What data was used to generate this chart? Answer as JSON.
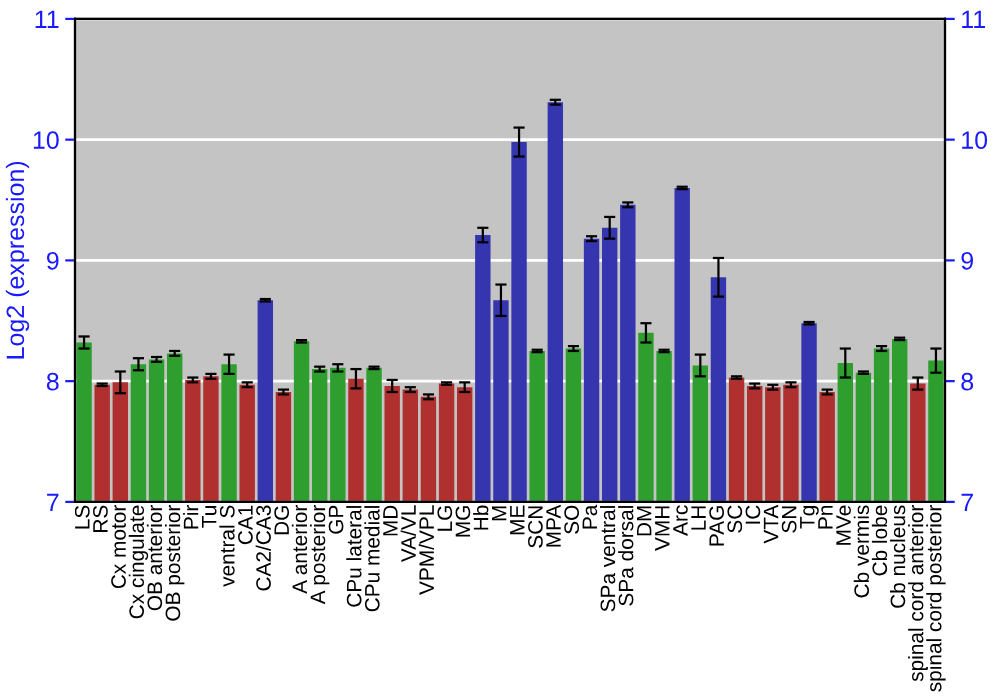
{
  "chart_data": {
    "type": "bar",
    "ylabel": "Log2 (expression)",
    "categories": [
      "LS",
      "RS",
      "Cx motor",
      "Cx cingulate",
      "OB anterior",
      "OB posterior",
      "Pir",
      "Tu",
      "ventral S",
      "CA1",
      "CA2/CA3",
      "DG",
      "A anterior",
      "A posterior",
      "GP",
      "CPu lateral",
      "CPu medial",
      "MD",
      "VA/VL",
      "VPM/VPL",
      "LG",
      "MG",
      "Hb",
      "M",
      "ME",
      "SCN",
      "MPA",
      "SO",
      "Pa",
      "SPa ventral",
      "SPa dorsal",
      "DM",
      "VMH",
      "Arc",
      "LH",
      "PAG",
      "SC",
      "IC",
      "VTA",
      "SN",
      "Tg",
      "Pn",
      "MVe",
      "Cb vermis",
      "Cb lobe",
      "Cb nucleus",
      "spinal cord anterior",
      "spinal cord posterior"
    ],
    "values": [
      8.32,
      7.97,
      7.99,
      8.14,
      8.18,
      8.23,
      8.01,
      8.04,
      8.14,
      7.97,
      8.67,
      7.91,
      8.33,
      8.1,
      8.11,
      8.02,
      8.11,
      7.96,
      7.93,
      7.87,
      7.98,
      7.95,
      9.21,
      8.67,
      9.98,
      8.25,
      10.31,
      8.27,
      9.18,
      9.27,
      9.46,
      8.4,
      8.25,
      9.6,
      8.13,
      8.86,
      8.03,
      7.96,
      7.95,
      7.97,
      8.48,
      7.91,
      8.15,
      8.07,
      8.27,
      8.35,
      7.98,
      8.17
    ],
    "errors": [
      0.05,
      0.01,
      0.09,
      0.05,
      0.02,
      0.02,
      0.02,
      0.02,
      0.08,
      0.02,
      0.01,
      0.02,
      0.01,
      0.02,
      0.03,
      0.08,
      0.01,
      0.05,
      0.02,
      0.02,
      0.01,
      0.04,
      0.06,
      0.13,
      0.12,
      0.01,
      0.02,
      0.02,
      0.02,
      0.09,
      0.02,
      0.08,
      0.01,
      0.01,
      0.09,
      0.16,
      0.01,
      0.02,
      0.02,
      0.02,
      0.01,
      0.02,
      0.12,
      0.01,
      0.02,
      0.01,
      0.05,
      0.1
    ],
    "colors": [
      "#2e9e2e",
      "#b03030",
      "#b03030",
      "#2e9e2e",
      "#2e9e2e",
      "#2e9e2e",
      "#b03030",
      "#b03030",
      "#2e9e2e",
      "#b03030",
      "#3535b0",
      "#b03030",
      "#2e9e2e",
      "#2e9e2e",
      "#2e9e2e",
      "#b03030",
      "#2e9e2e",
      "#b03030",
      "#b03030",
      "#b03030",
      "#b03030",
      "#b03030",
      "#3535b0",
      "#3535b0",
      "#3535b0",
      "#2e9e2e",
      "#3535b0",
      "#2e9e2e",
      "#3535b0",
      "#3535b0",
      "#3535b0",
      "#2e9e2e",
      "#2e9e2e",
      "#3535b0",
      "#2e9e2e",
      "#3535b0",
      "#b03030",
      "#b03030",
      "#b03030",
      "#b03030",
      "#3535b0",
      "#b03030",
      "#2e9e2e",
      "#2e9e2e",
      "#2e9e2e",
      "#2e9e2e",
      "#b03030",
      "#2e9e2e"
    ],
    "ylim": [
      7,
      11
    ],
    "yticks": [
      7,
      8,
      9,
      10,
      11
    ],
    "y2lim": [
      7,
      11
    ],
    "y2ticks": [
      7,
      8,
      9,
      10,
      11
    ],
    "grid": "y"
  }
}
